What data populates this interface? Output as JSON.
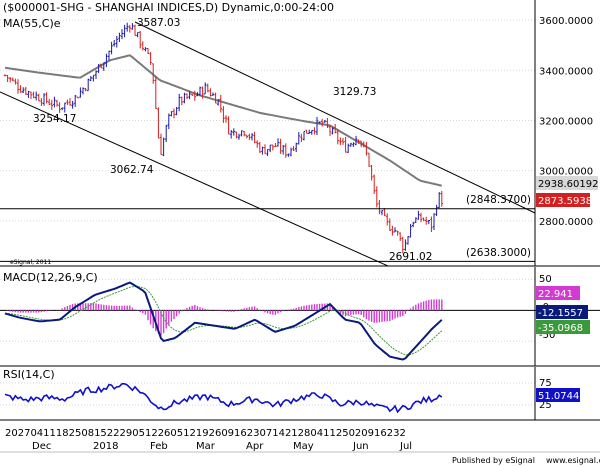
{
  "colors": {
    "background": "#ffffff",
    "up": "#1a1aa8",
    "down": "#d21f1f",
    "ma": "#7a7a7a",
    "macd_line": "#0a1a7a",
    "signal_line": "#3a9a3a",
    "histogram": "#d23ad2",
    "rsi_line": "#1010c8",
    "tag_gray_bg": "#d8d8d8",
    "tag_red_bg": "#d21f1f",
    "tag_navy_bg": "#0a1a7a",
    "tag_green_bg": "#3a9a3a",
    "tag_magenta_bg": "#d23ad2",
    "tag_blue_bg": "#1010c8"
  },
  "header": {
    "title": "($000001-SHG - SHANGHAI INDICES,D) Dynamic,0:00-24:00",
    "ma_label": "MA(55,C)e"
  },
  "annotations": {
    "high": "3587.03",
    "level_3254": "3254.17",
    "level_3062": "3062.74",
    "level_3129": "3129.73",
    "low": "2691.02",
    "level_2848": "(2848.3700)",
    "level_2638": "(2638.3000)",
    "watermark": "eSignal, 2011"
  },
  "price_tags": {
    "ma_value": "2938.60192",
    "last_close": "2873.5938"
  },
  "macd": {
    "label": "MACD(12,26,9,C)",
    "hist_value": "22.941",
    "macd_value": "-12.1557",
    "signal_value": "-35.0968"
  },
  "rsi": {
    "label": "RSI(14,C)",
    "value": "51.0744"
  },
  "footer": {
    "published": "Published by eSignal",
    "url": "www.esignal.com"
  },
  "chart_data": {
    "type": "candlestick",
    "title": "($000001-SHG - SHANGHAI INDICES,D) Dynamic,0:00-24:00",
    "price_axis": {
      "ticks": [
        "3600.0000",
        "3400.0000",
        "3200.0000",
        "3000.0000",
        "2800.0000"
      ],
      "tick_values": [
        3600,
        3400,
        3200,
        3000,
        2800
      ],
      "range": [
        2620,
        3680
      ]
    },
    "x_axis": {
      "day_labels": "202704111825081522290512260512192609162307142128041125020916232",
      "month_labels": [
        "Dec",
        "2018",
        "Feb",
        "Mar",
        "Apr",
        "May",
        "Jun",
        "Jul"
      ]
    },
    "key_prices": [
      3254.17,
      3587.03,
      3062.74,
      3129.73,
      2691.02
    ],
    "horizontal_levels": [
      2848.37,
      2638.3
    ],
    "last_close": 2873.5938,
    "ma_period": 55,
    "ma_last": 2938.60192,
    "macd": {
      "params": [
        12,
        26,
        9
      ],
      "histogram": 22.941,
      "macd": -12.1557,
      "signal": -35.0968,
      "ticks": [
        "50",
        "-0",
        "-50"
      ]
    },
    "rsi": {
      "period": 14,
      "value": 51.0744,
      "ticks": [
        "75",
        "25"
      ]
    },
    "grid": false,
    "legend": "top-left"
  }
}
